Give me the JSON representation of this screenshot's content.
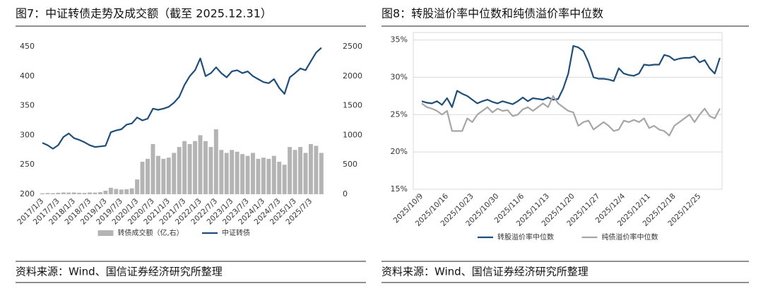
{
  "chart_data": [
    {
      "type": "combo",
      "title": "图7：中证转债走势及成交额（截至 2025.12.31）",
      "source": "资料来源：Wind、国信证券经济研究所整理",
      "categories": [
        "2017/1/3",
        null,
        null,
        "2017/7/3",
        null,
        null,
        "2018/1/3",
        null,
        null,
        "2018/7/3",
        null,
        null,
        "2019/1/3",
        null,
        null,
        "2019/7/3",
        null,
        null,
        "2020/1/3",
        null,
        null,
        "2020/7/3",
        null,
        null,
        "2021/1/3",
        null,
        null,
        "2021/7/3",
        null,
        null,
        "2022/1/3",
        null,
        null,
        "2022/7/3",
        null,
        null,
        "2023/1/3",
        null,
        null,
        "2023/7/3",
        null,
        null,
        "2024/1/3",
        null,
        null,
        "2024/7/3",
        null,
        null,
        "2025/1/3",
        null,
        null,
        "2025/7/3",
        null,
        null
      ],
      "series": [
        {
          "name": "转债成交额（亿,右）",
          "type": "bar",
          "axis": "y2",
          "color": "#b4b4b4",
          "values": [
            15,
            20,
            18,
            25,
            30,
            28,
            30,
            25,
            22,
            30,
            28,
            35,
            60,
            110,
            90,
            80,
            85,
            100,
            250,
            550,
            600,
            850,
            650,
            600,
            620,
            700,
            800,
            900,
            850,
            900,
            1000,
            900,
            800,
            1100,
            750,
            700,
            750,
            720,
            680,
            650,
            700,
            600,
            620,
            600,
            650,
            550,
            500,
            800,
            750,
            800,
            700,
            850,
            820,
            700
          ]
        },
        {
          "name": "中证转债",
          "type": "line",
          "axis": "y",
          "color": "#1f4e79",
          "values": [
            287,
            283,
            277,
            283,
            297,
            303,
            295,
            292,
            288,
            283,
            280,
            281,
            282,
            305,
            308,
            310,
            318,
            320,
            330,
            325,
            328,
            345,
            343,
            345,
            348,
            355,
            365,
            385,
            400,
            410,
            430,
            400,
            405,
            415,
            405,
            398,
            408,
            410,
            405,
            408,
            400,
            395,
            390,
            388,
            395,
            380,
            370,
            398,
            405,
            413,
            410,
            425,
            440,
            448
          ]
        }
      ],
      "ylim": [
        200,
        450
      ],
      "yticks": [
        200,
        250,
        300,
        350,
        400,
        450
      ],
      "y2lim": [
        0,
        2500
      ],
      "y2ticks": [
        0,
        500,
        1000,
        1500,
        2000,
        2500
      ],
      "grid": false
    },
    {
      "type": "line",
      "title": "图8：转股溢价率中位数和纯债溢价率中位数",
      "source": "资料来源：Wind、国信证券经济研究所整理",
      "categories": [
        "2025/10/9",
        null,
        null,
        null,
        null,
        "2025/10/16",
        null,
        null,
        null,
        null,
        "2025/10/23",
        null,
        null,
        null,
        null,
        "2025/10/30",
        null,
        null,
        null,
        null,
        "2025/11/6",
        null,
        null,
        null,
        null,
        "2025/11/13",
        null,
        null,
        null,
        null,
        "2025/11/20",
        null,
        null,
        null,
        null,
        "2025/11/27",
        null,
        null,
        null,
        null,
        "2025/12/4",
        null,
        null,
        null,
        null,
        "2025/12/11",
        null,
        null,
        null,
        null,
        "2025/12/18",
        null,
        null,
        null,
        null,
        "2025/12/25",
        null,
        null,
        null,
        null
      ],
      "series": [
        {
          "name": "转股溢价率中位数",
          "color": "#1f4e79",
          "values": [
            26.8,
            26.6,
            26.5,
            26.8,
            26.3,
            27.2,
            26.0,
            28.2,
            27.8,
            27.5,
            27.0,
            26.5,
            26.8,
            27.0,
            26.7,
            26.5,
            26.8,
            26.6,
            26.4,
            26.8,
            27.3,
            26.8,
            27.2,
            27.1,
            27.0,
            27.3,
            27.0,
            27.1,
            28.5,
            30.5,
            34.2,
            34.0,
            33.5,
            32.0,
            30.0,
            29.8,
            29.8,
            29.7,
            29.5,
            31.2,
            30.5,
            30.3,
            30.2,
            30.5,
            31.7,
            31.6,
            31.7,
            31.7,
            33.0,
            32.8,
            32.3,
            32.5,
            32.6,
            32.6,
            32.8,
            32.0,
            32.3,
            31.2,
            30.5,
            32.6
          ]
        },
        {
          "name": "纯债溢价率中位数",
          "color": "#a6a6a6",
          "values": [
            26.5,
            26.0,
            25.8,
            25.5,
            25.0,
            25.5,
            22.8,
            22.8,
            22.8,
            24.5,
            24.0,
            25.0,
            25.5,
            26.0,
            25.3,
            25.8,
            25.5,
            25.6,
            24.8,
            25.0,
            25.7,
            26.0,
            25.5,
            26.0,
            26.5,
            26.0,
            27.5,
            26.5,
            26.0,
            25.5,
            25.3,
            23.5,
            24.0,
            24.2,
            23.0,
            23.5,
            24.0,
            23.5,
            22.8,
            23.0,
            24.2,
            24.0,
            24.3,
            24.0,
            24.5,
            23.2,
            23.5,
            23.0,
            22.8,
            22.2,
            23.5,
            24.0,
            24.5,
            25.0,
            24.0,
            25.0,
            25.8,
            24.8,
            24.5,
            25.8
          ]
        }
      ],
      "ylim": [
        15,
        36
      ],
      "yticks": [
        {
          "value": 15,
          "label": "15%"
        },
        {
          "value": 20,
          "label": "20%"
        },
        {
          "value": 25,
          "label": "25%"
        },
        {
          "value": 30,
          "label": "30%"
        },
        {
          "value": 35,
          "label": "35%"
        }
      ],
      "grid": true
    }
  ]
}
